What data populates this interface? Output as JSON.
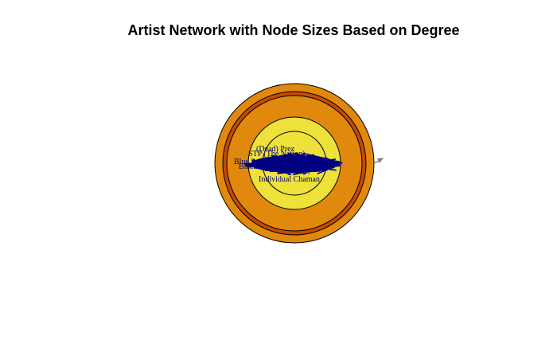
{
  "title": "Artist Network with Node Sizes Based on Degree",
  "colors": {
    "outer_node": "#E0890C",
    "ring_node": "#C44A06",
    "inner_node": "#EDE13A",
    "edge": "#000080",
    "arrow": "#808080",
    "stroke": "#000000"
  },
  "nodes": [
    {
      "label": "(Dead) Prez"
    },
    {
      "label": "STP (The Nation)"
    },
    {
      "label": "Blue Scholars (Blue Whale)"
    },
    {
      "label": "Blackalicious"
    },
    {
      "label": "Dilated Peoples"
    },
    {
      "label": "Individual Chaman"
    }
  ]
}
